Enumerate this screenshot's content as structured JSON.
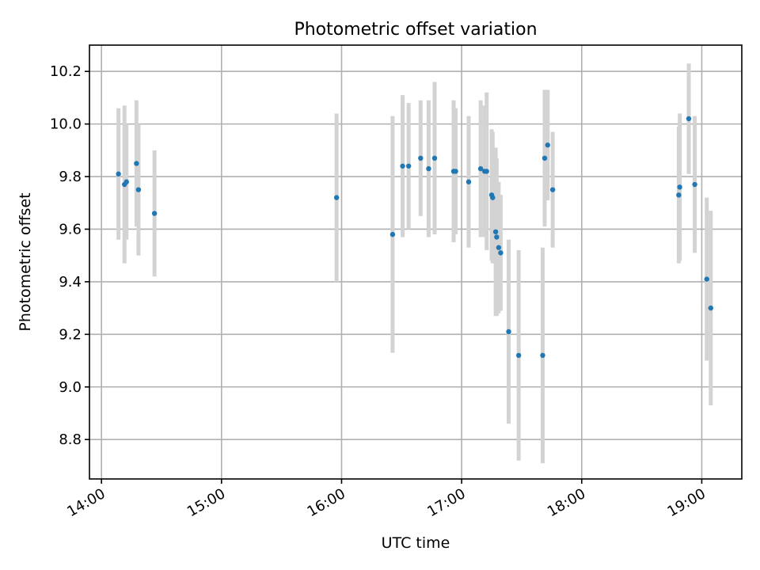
{
  "chart_data": {
    "type": "scatter",
    "title": "Photometric offset variation",
    "xlabel": "UTC time",
    "ylabel": "Photometric offset",
    "xlim": [
      "13:54",
      "19:20"
    ],
    "ylim": [
      8.65,
      10.3
    ],
    "x_ticks": [
      "14:00",
      "15:00",
      "16:00",
      "17:00",
      "18:00",
      "19:00"
    ],
    "y_ticks": [
      8.8,
      9.0,
      9.2,
      9.4,
      9.6,
      9.8,
      10.0,
      10.2
    ],
    "grid": true,
    "marker_color": "#1f77b4",
    "errorbar_color": "#d3d3d3",
    "points": [
      {
        "x": "14:08:30",
        "y": 9.81,
        "err": 0.25
      },
      {
        "x": "14:11:30",
        "y": 9.77,
        "err": 0.3
      },
      {
        "x": "14:12:30",
        "y": 9.78,
        "err": 0.22
      },
      {
        "x": "14:17:30",
        "y": 9.85,
        "err": 0.24
      },
      {
        "x": "14:18:30",
        "y": 9.75,
        "err": 0.25
      },
      {
        "x": "14:26:30",
        "y": 9.66,
        "err": 0.24
      },
      {
        "x": "15:57:30",
        "y": 9.72,
        "err": 0.32
      },
      {
        "x": "16:25:30",
        "y": 9.58,
        "err": 0.45
      },
      {
        "x": "16:30:30",
        "y": 9.84,
        "err": 0.27
      },
      {
        "x": "16:33:30",
        "y": 9.84,
        "err": 0.24
      },
      {
        "x": "16:39:30",
        "y": 9.87,
        "err": 0.22
      },
      {
        "x": "16:43:30",
        "y": 9.83,
        "err": 0.26
      },
      {
        "x": "16:46:30",
        "y": 9.87,
        "err": 0.29
      },
      {
        "x": "16:56:00",
        "y": 9.82,
        "err": 0.27
      },
      {
        "x": "16:57:00",
        "y": 9.82,
        "err": 0.24
      },
      {
        "x": "17:03:30",
        "y": 9.78,
        "err": 0.25
      },
      {
        "x": "17:09:30",
        "y": 9.83,
        "err": 0.26
      },
      {
        "x": "17:11:30",
        "y": 9.82,
        "err": 0.25
      },
      {
        "x": "17:12:30",
        "y": 9.82,
        "err": 0.3
      },
      {
        "x": "17:15:00",
        "y": 9.73,
        "err": 0.25
      },
      {
        "x": "17:15:30",
        "y": 9.72,
        "err": 0.25
      },
      {
        "x": "17:17:00",
        "y": 9.59,
        "err": 0.32
      },
      {
        "x": "17:17:30",
        "y": 9.57,
        "err": 0.3
      },
      {
        "x": "17:18:30",
        "y": 9.53,
        "err": 0.25
      },
      {
        "x": "17:19:30",
        "y": 9.51,
        "err": 0.22
      },
      {
        "x": "17:23:30",
        "y": 9.21,
        "err": 0.35
      },
      {
        "x": "17:28:30",
        "y": 9.12,
        "err": 0.4
      },
      {
        "x": "17:40:30",
        "y": 9.12,
        "err": 0.41
      },
      {
        "x": "17:41:30",
        "y": 9.87,
        "err": 0.26
      },
      {
        "x": "17:43:00",
        "y": 9.92,
        "err": 0.21
      },
      {
        "x": "17:45:30",
        "y": 9.75,
        "err": 0.22
      },
      {
        "x": "18:48:30",
        "y": 9.73,
        "err": 0.26
      },
      {
        "x": "18:49:00",
        "y": 9.76,
        "err": 0.28
      },
      {
        "x": "18:53:30",
        "y": 10.02,
        "err": 0.21
      },
      {
        "x": "18:56:30",
        "y": 9.77,
        "err": 0.26
      },
      {
        "x": "19:02:30",
        "y": 9.41,
        "err": 0.31
      },
      {
        "x": "19:04:30",
        "y": 9.3,
        "err": 0.37
      }
    ]
  }
}
